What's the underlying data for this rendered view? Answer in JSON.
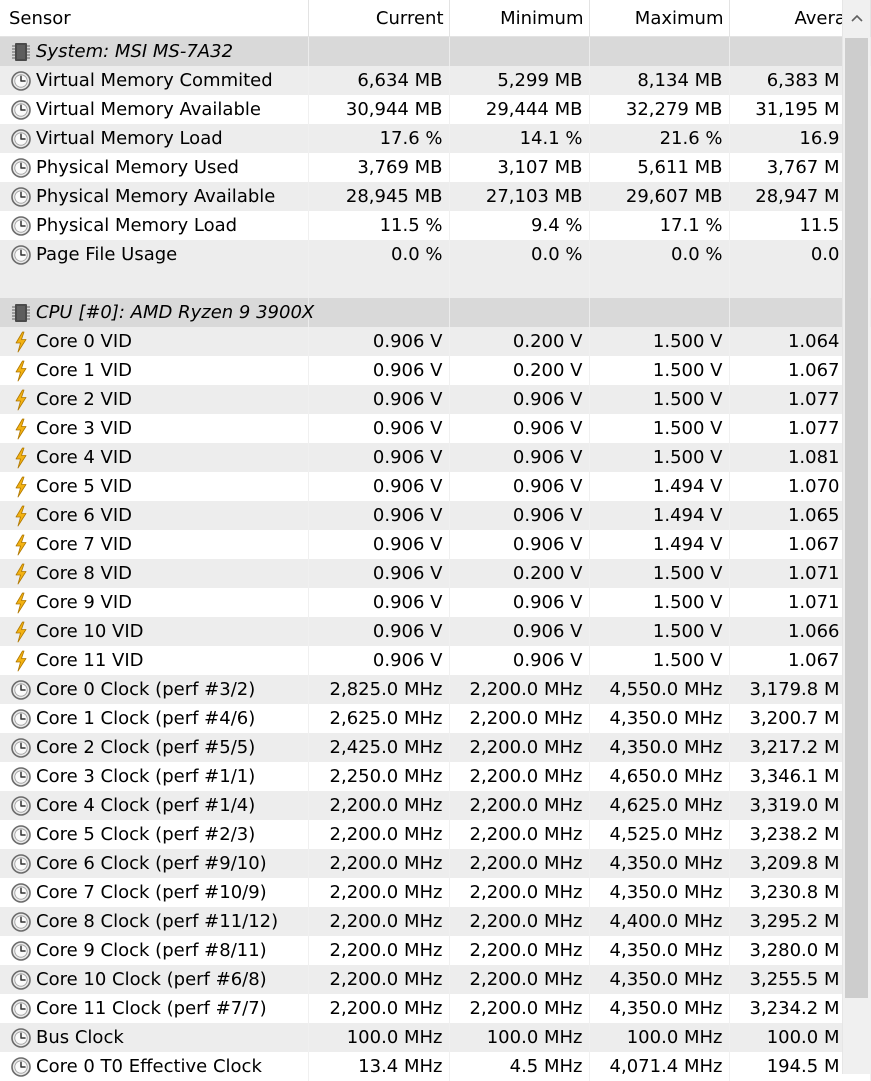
{
  "header": {
    "sensor": "Sensor",
    "current": "Current",
    "minimum": "Minimum",
    "maximum": "Maximum",
    "average": "Avera"
  },
  "rows": [
    {
      "type": "group",
      "icon": "chip",
      "label": "System: MSI MS-7A32"
    },
    {
      "type": "data",
      "icon": "clock",
      "label": "Virtual Memory Commited",
      "cur": "6,634 MB",
      "min": "5,299 MB",
      "max": "8,134 MB",
      "avg": "6,383 M"
    },
    {
      "type": "data",
      "icon": "clock",
      "label": "Virtual Memory Available",
      "cur": "30,944 MB",
      "min": "29,444 MB",
      "max": "32,279 MB",
      "avg": "31,195 M"
    },
    {
      "type": "data",
      "icon": "clock",
      "label": "Virtual Memory Load",
      "cur": "17.6 %",
      "min": "14.1 %",
      "max": "21.6 %",
      "avg": "16.9"
    },
    {
      "type": "data",
      "icon": "clock",
      "label": "Physical Memory Used",
      "cur": "3,769 MB",
      "min": "3,107 MB",
      "max": "5,611 MB",
      "avg": "3,767 M"
    },
    {
      "type": "data",
      "icon": "clock",
      "label": "Physical Memory Available",
      "cur": "28,945 MB",
      "min": "27,103 MB",
      "max": "29,607 MB",
      "avg": "28,947 M"
    },
    {
      "type": "data",
      "icon": "clock",
      "label": "Physical Memory Load",
      "cur": "11.5 %",
      "min": "9.4 %",
      "max": "17.1 %",
      "avg": "11.5"
    },
    {
      "type": "data",
      "icon": "clock",
      "label": "Page File Usage",
      "cur": "0.0 %",
      "min": "0.0 %",
      "max": "0.0 %",
      "avg": "0.0"
    },
    {
      "type": "blank"
    },
    {
      "type": "group",
      "icon": "chip",
      "label": "CPU [#0]: AMD Ryzen 9 3900X"
    },
    {
      "type": "data",
      "icon": "bolt",
      "label": "Core 0 VID",
      "cur": "0.906 V",
      "min": "0.200 V",
      "max": "1.500 V",
      "avg": "1.064"
    },
    {
      "type": "data",
      "icon": "bolt",
      "label": "Core 1 VID",
      "cur": "0.906 V",
      "min": "0.200 V",
      "max": "1.500 V",
      "avg": "1.067"
    },
    {
      "type": "data",
      "icon": "bolt",
      "label": "Core 2 VID",
      "cur": "0.906 V",
      "min": "0.906 V",
      "max": "1.500 V",
      "avg": "1.077"
    },
    {
      "type": "data",
      "icon": "bolt",
      "label": "Core 3 VID",
      "cur": "0.906 V",
      "min": "0.906 V",
      "max": "1.500 V",
      "avg": "1.077"
    },
    {
      "type": "data",
      "icon": "bolt",
      "label": "Core 4 VID",
      "cur": "0.906 V",
      "min": "0.906 V",
      "max": "1.500 V",
      "avg": "1.081"
    },
    {
      "type": "data",
      "icon": "bolt",
      "label": "Core 5 VID",
      "cur": "0.906 V",
      "min": "0.906 V",
      "max": "1.494 V",
      "avg": "1.070"
    },
    {
      "type": "data",
      "icon": "bolt",
      "label": "Core 6 VID",
      "cur": "0.906 V",
      "min": "0.906 V",
      "max": "1.494 V",
      "avg": "1.065"
    },
    {
      "type": "data",
      "icon": "bolt",
      "label": "Core 7 VID",
      "cur": "0.906 V",
      "min": "0.906 V",
      "max": "1.494 V",
      "avg": "1.067"
    },
    {
      "type": "data",
      "icon": "bolt",
      "label": "Core 8 VID",
      "cur": "0.906 V",
      "min": "0.200 V",
      "max": "1.500 V",
      "avg": "1.071"
    },
    {
      "type": "data",
      "icon": "bolt",
      "label": "Core 9 VID",
      "cur": "0.906 V",
      "min": "0.906 V",
      "max": "1.500 V",
      "avg": "1.071"
    },
    {
      "type": "data",
      "icon": "bolt",
      "label": "Core 10 VID",
      "cur": "0.906 V",
      "min": "0.906 V",
      "max": "1.500 V",
      "avg": "1.066"
    },
    {
      "type": "data",
      "icon": "bolt",
      "label": "Core 11 VID",
      "cur": "0.906 V",
      "min": "0.906 V",
      "max": "1.500 V",
      "avg": "1.067"
    },
    {
      "type": "data",
      "icon": "clock",
      "label": "Core 0 Clock (perf #3/2)",
      "cur": "2,825.0 MHz",
      "min": "2,200.0 MHz",
      "max": "4,550.0 MHz",
      "avg": "3,179.8 M"
    },
    {
      "type": "data",
      "icon": "clock",
      "label": "Core 1 Clock (perf #4/6)",
      "cur": "2,625.0 MHz",
      "min": "2,200.0 MHz",
      "max": "4,350.0 MHz",
      "avg": "3,200.7 M"
    },
    {
      "type": "data",
      "icon": "clock",
      "label": "Core 2 Clock (perf #5/5)",
      "cur": "2,425.0 MHz",
      "min": "2,200.0 MHz",
      "max": "4,350.0 MHz",
      "avg": "3,217.2 M"
    },
    {
      "type": "data",
      "icon": "clock",
      "label": "Core 3 Clock (perf #1/1)",
      "cur": "2,250.0 MHz",
      "min": "2,200.0 MHz",
      "max": "4,650.0 MHz",
      "avg": "3,346.1 M"
    },
    {
      "type": "data",
      "icon": "clock",
      "label": "Core 4 Clock (perf #1/4)",
      "cur": "2,200.0 MHz",
      "min": "2,200.0 MHz",
      "max": "4,625.0 MHz",
      "avg": "3,319.0 M"
    },
    {
      "type": "data",
      "icon": "clock",
      "label": "Core 5 Clock (perf #2/3)",
      "cur": "2,200.0 MHz",
      "min": "2,200.0 MHz",
      "max": "4,525.0 MHz",
      "avg": "3,238.2 M"
    },
    {
      "type": "data",
      "icon": "clock",
      "label": "Core 6 Clock (perf #9/10)",
      "cur": "2,200.0 MHz",
      "min": "2,200.0 MHz",
      "max": "4,350.0 MHz",
      "avg": "3,209.8 M"
    },
    {
      "type": "data",
      "icon": "clock",
      "label": "Core 7 Clock (perf #10/9)",
      "cur": "2,200.0 MHz",
      "min": "2,200.0 MHz",
      "max": "4,350.0 MHz",
      "avg": "3,230.8 M"
    },
    {
      "type": "data",
      "icon": "clock",
      "label": "Core 8 Clock (perf #11/12)",
      "cur": "2,200.0 MHz",
      "min": "2,200.0 MHz",
      "max": "4,400.0 MHz",
      "avg": "3,295.2 M"
    },
    {
      "type": "data",
      "icon": "clock",
      "label": "Core 9 Clock (perf #8/11)",
      "cur": "2,200.0 MHz",
      "min": "2,200.0 MHz",
      "max": "4,350.0 MHz",
      "avg": "3,280.0 M"
    },
    {
      "type": "data",
      "icon": "clock",
      "label": "Core 10 Clock (perf #6/8)",
      "cur": "2,200.0 MHz",
      "min": "2,200.0 MHz",
      "max": "4,350.0 MHz",
      "avg": "3,255.5 M"
    },
    {
      "type": "data",
      "icon": "clock",
      "label": "Core 11 Clock (perf #7/7)",
      "cur": "2,200.0 MHz",
      "min": "2,200.0 MHz",
      "max": "4,350.0 MHz",
      "avg": "3,234.2 M"
    },
    {
      "type": "data",
      "icon": "clock",
      "label": "Bus Clock",
      "cur": "100.0 MHz",
      "min": "100.0 MHz",
      "max": "100.0 MHz",
      "avg": "100.0 M"
    },
    {
      "type": "data",
      "icon": "clock",
      "label": "Core 0 T0 Effective Clock",
      "cur": "13.4 MHz",
      "min": "4.5 MHz",
      "max": "4,071.4 MHz",
      "avg": "194.5 M"
    }
  ],
  "scrollbar": {
    "up_arrow_icon": "chevron-up-icon"
  }
}
